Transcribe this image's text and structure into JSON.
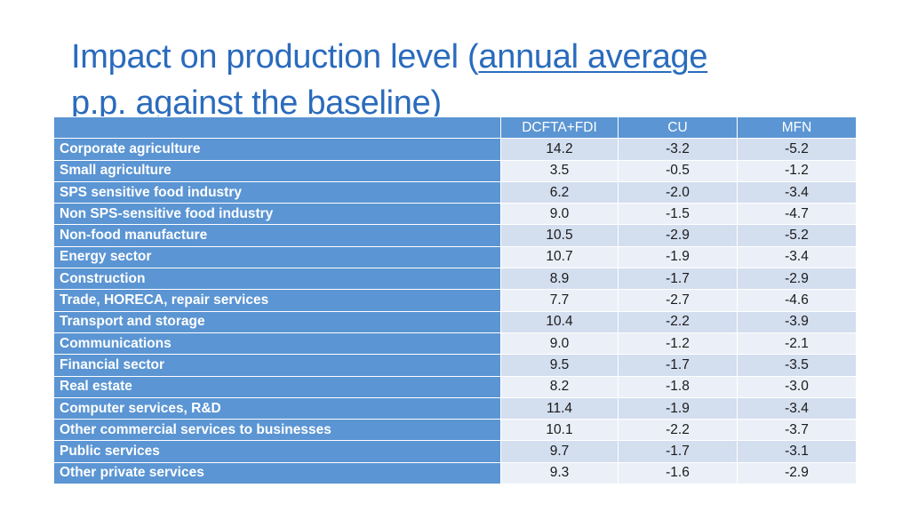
{
  "title": {
    "part1": "Impact on production level (",
    "part2_underlined": "annual average",
    "part3": "p.p. against the baseline)"
  },
  "table": {
    "columns": [
      "DCFTA+FDI",
      "CU",
      "MFN"
    ],
    "rows": [
      {
        "label": "Corporate agriculture",
        "dcfta_fdi": "14.2",
        "cu": "-3.2",
        "mfn": "-5.2"
      },
      {
        "label": "Small agriculture",
        "dcfta_fdi": "3.5",
        "cu": "-0.5",
        "mfn": "-1.2"
      },
      {
        "label": "SPS sensitive food industry",
        "dcfta_fdi": "6.2",
        "cu": "-2.0",
        "mfn": "-3.4"
      },
      {
        "label": "Non SPS-sensitive food industry",
        "dcfta_fdi": "9.0",
        "cu": "-1.5",
        "mfn": "-4.7"
      },
      {
        "label": "Non-food manufacture",
        "dcfta_fdi": "10.5",
        "cu": "-2.9",
        "mfn": "-5.2"
      },
      {
        "label": "Energy sector",
        "dcfta_fdi": "10.7",
        "cu": "-1.9",
        "mfn": "-3.4"
      },
      {
        "label": "Construction",
        "dcfta_fdi": "8.9",
        "cu": "-1.7",
        "mfn": "-2.9"
      },
      {
        "label": "Trade, HORECA, repair services",
        "dcfta_fdi": "7.7",
        "cu": "-2.7",
        "mfn": "-4.6"
      },
      {
        "label": "Transport and storage",
        "dcfta_fdi": "10.4",
        "cu": "-2.2",
        "mfn": "-3.9"
      },
      {
        "label": "Communications",
        "dcfta_fdi": "9.0",
        "cu": "-1.2",
        "mfn": "-2.1"
      },
      {
        "label": "Financial sector",
        "dcfta_fdi": "9.5",
        "cu": "-1.7",
        "mfn": "-3.5"
      },
      {
        "label": "Real estate",
        "dcfta_fdi": "8.2",
        "cu": "-1.8",
        "mfn": "-3.0"
      },
      {
        "label": "Computer services, R&D",
        "dcfta_fdi": "11.4",
        "cu": "-1.9",
        "mfn": "-3.4"
      },
      {
        "label": "Other commercial services to businesses",
        "dcfta_fdi": "10.1",
        "cu": "-2.2",
        "mfn": "-3.7"
      },
      {
        "label": "Public services",
        "dcfta_fdi": "9.7",
        "cu": "-1.7",
        "mfn": "-3.1"
      },
      {
        "label": "Other private services",
        "dcfta_fdi": "9.3",
        "cu": "-1.6",
        "mfn": "-2.9"
      }
    ]
  },
  "colors": {
    "title": "#2a6bbd",
    "header_fill": "#5b95d3",
    "row_band_dark": "#d3deef",
    "row_band_light": "#ebf0f8"
  }
}
